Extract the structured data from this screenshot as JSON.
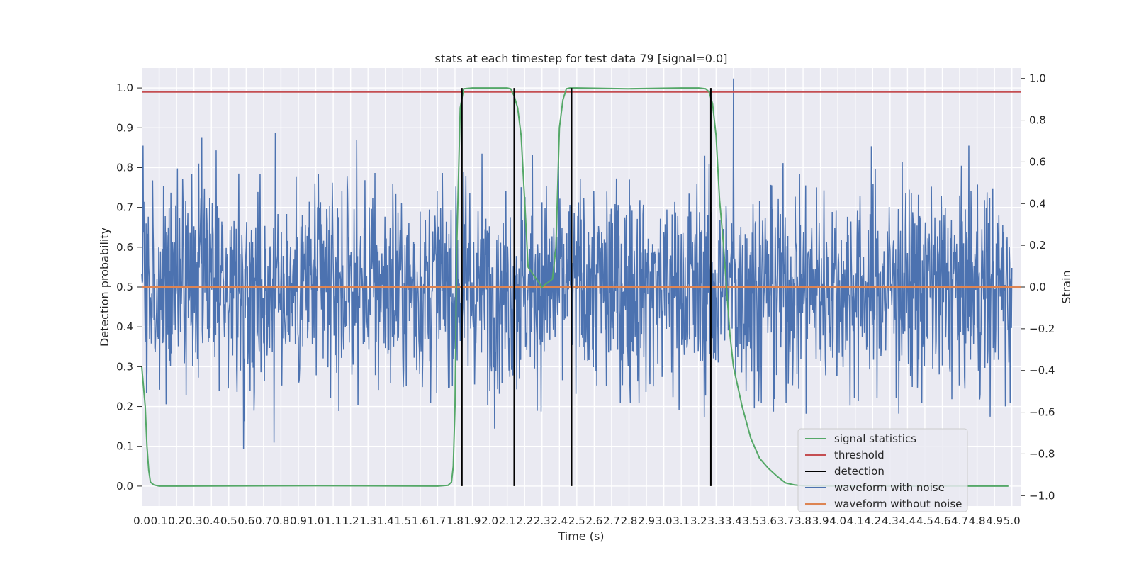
{
  "chart_data": {
    "type": "line",
    "title": "stats at each timestep for test data 79 [signal=0.0]",
    "xlabel": "Time (s)",
    "ylabel": "Detection probability",
    "y2label": "Strain",
    "xlim": [
      0.0,
      5.05
    ],
    "ylim": [
      -0.05,
      1.05
    ],
    "y2lim": [
      -1.05,
      1.05
    ],
    "grid": true,
    "legend_position": "lower-right",
    "x_ticks": [
      "0.0",
      "0.1",
      "0.2",
      "0.3",
      "0.4",
      "0.5",
      "0.6",
      "0.7",
      "0.8",
      "0.9",
      "1.0",
      "1.1",
      "1.2",
      "1.3",
      "1.4",
      "1.5",
      "1.6",
      "1.7",
      "1.8",
      "1.9",
      "2.0",
      "2.1",
      "2.2",
      "2.3",
      "2.4",
      "2.5",
      "2.6",
      "2.7",
      "2.8",
      "2.9",
      "3.0",
      "3.1",
      "3.2",
      "3.3",
      "3.4",
      "3.5",
      "3.6",
      "3.7",
      "3.8",
      "3.9",
      "4.0",
      "4.1",
      "4.2",
      "4.3",
      "4.4",
      "4.5",
      "4.6",
      "4.7",
      "4.8",
      "4.9",
      "5.0"
    ],
    "y_ticks": [
      "0.0",
      "0.1",
      "0.2",
      "0.3",
      "0.4",
      "0.5",
      "0.6",
      "0.7",
      "0.8",
      "0.9",
      "1.0"
    ],
    "y2_ticks": [
      "−1.0",
      "−0.8",
      "−0.6",
      "−0.4",
      "−0.2",
      "0.0",
      "0.2",
      "0.4",
      "0.6",
      "0.8",
      "1.0"
    ],
    "colors": {
      "background": "#eaeaf2",
      "grid": "#ffffff",
      "signal_statistics": "#55a868",
      "threshold": "#c44e52",
      "detection": "#000000",
      "waveform_with_noise": "#4c72b0",
      "waveform_without_noise": "#dd8452"
    },
    "series": [
      {
        "name": "signal statistics",
        "axis": "left",
        "x": [
          0.0,
          0.02,
          0.03,
          0.04,
          0.05,
          0.07,
          0.1,
          0.2,
          1.0,
          1.7,
          1.76,
          1.78,
          1.79,
          1.8,
          1.81,
          1.83,
          1.85,
          1.9,
          2.0,
          2.1,
          2.12,
          2.14,
          2.16,
          2.18,
          2.2,
          2.22,
          2.3,
          2.36,
          2.38,
          2.39,
          2.4,
          2.42,
          2.44,
          2.46,
          2.5,
          2.8,
          3.1,
          3.2,
          3.24,
          3.26,
          3.28,
          3.3,
          3.32,
          3.34,
          3.36,
          3.38,
          3.4,
          3.45,
          3.5,
          3.55,
          3.6,
          3.65,
          3.7,
          3.75,
          3.8,
          4.0,
          4.5,
          4.98
        ],
        "y": [
          0.3,
          0.2,
          0.1,
          0.04,
          0.01,
          0.003,
          0.0,
          0.0,
          0.001,
          0.0,
          0.002,
          0.01,
          0.05,
          0.2,
          0.6,
          0.95,
          0.998,
          1.0,
          1.0,
          1.0,
          0.998,
          0.98,
          0.95,
          0.88,
          0.72,
          0.55,
          0.5,
          0.52,
          0.6,
          0.75,
          0.9,
          0.97,
          0.998,
          1.0,
          1.0,
          0.998,
          1.0,
          1.0,
          0.998,
          0.99,
          0.96,
          0.88,
          0.72,
          0.62,
          0.5,
          0.38,
          0.3,
          0.2,
          0.12,
          0.07,
          0.045,
          0.025,
          0.008,
          0.003,
          0.001,
          0.0,
          0.0,
          0.0
        ]
      },
      {
        "name": "threshold",
        "axis": "left",
        "x": [
          0.0,
          5.05
        ],
        "y": [
          0.99,
          0.99
        ]
      },
      {
        "name": "detection",
        "axis": "left",
        "type": "vlines",
        "x": [
          1.84,
          2.14,
          2.47,
          3.27
        ],
        "y_range": [
          0.0,
          1.0
        ]
      },
      {
        "name": "waveform with noise",
        "axis": "right",
        "x_range": [
          0.0,
          5.0
        ],
        "amplitude_std": 0.25,
        "peak_x": 3.4,
        "peak_y": 1.0
      },
      {
        "name": "waveform without noise",
        "axis": "right",
        "x": [
          0.0,
          5.05
        ],
        "y": [
          0.0,
          0.0
        ]
      }
    ]
  }
}
